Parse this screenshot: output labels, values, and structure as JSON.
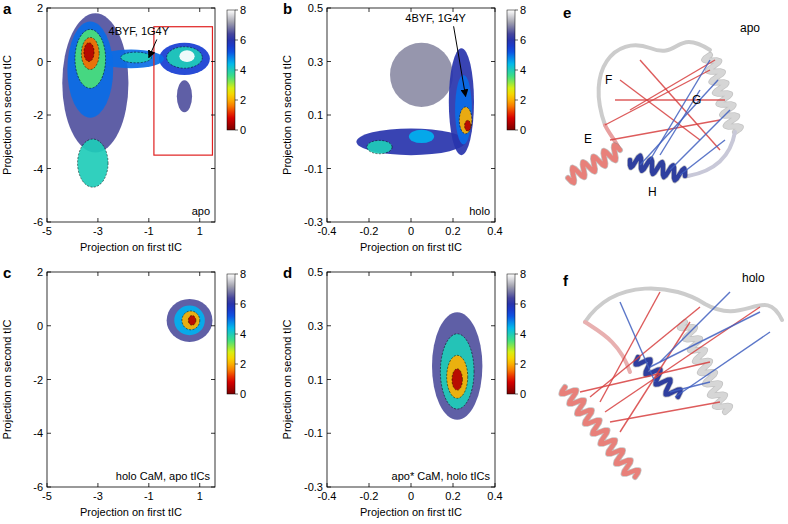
{
  "chart_data": [
    {
      "type": "density",
      "panel": "a",
      "x_label": "Projection on first tIC",
      "y_label": "Projection on second tIC",
      "label": "apo",
      "xlim": [
        -5,
        1.6
      ],
      "ylim": [
        -6,
        2
      ],
      "xticks": [
        -5,
        -3,
        -1,
        1
      ],
      "yticks": [
        -6,
        -4,
        -2,
        0,
        2
      ],
      "colorbar": {
        "range": [
          0,
          8
        ],
        "ticks": [
          0,
          2,
          4,
          6,
          8
        ]
      },
      "regions": [
        {
          "x": -3.1,
          "y": -0.8,
          "rx": 1.3,
          "ry": 2.6,
          "value": 6.5
        },
        {
          "x": 0.4,
          "y": -1.3,
          "rx": 0.3,
          "ry": 0.6,
          "value": 6.5
        },
        {
          "x": 0.4,
          "y": 0.1,
          "rx": 1.0,
          "ry": 0.6,
          "value": 5.5
        },
        {
          "x": -1.7,
          "y": 0.1,
          "rx": 1.3,
          "ry": 0.35,
          "value": 5
        },
        {
          "x": -3.3,
          "y": -0.3,
          "rx": 0.9,
          "ry": 1.8,
          "value": 5
        },
        {
          "x": -3.2,
          "y": -3.8,
          "rx": 0.6,
          "ry": 0.9,
          "value": 4
        },
        {
          "x": -1.5,
          "y": 0.15,
          "rx": 0.6,
          "ry": 0.2,
          "value": 4
        },
        {
          "x": 0.4,
          "y": 0.15,
          "rx": 0.7,
          "ry": 0.4,
          "value": 4
        },
        {
          "x": -3.3,
          "y": 0.1,
          "rx": 0.6,
          "ry": 1.1,
          "value": 3.5
        },
        {
          "x": -3.3,
          "y": 0.3,
          "rx": 0.35,
          "ry": 0.6,
          "value": 1.5
        },
        {
          "x": -3.35,
          "y": 0.35,
          "rx": 0.2,
          "ry": 0.35,
          "value": 0.5
        },
        {
          "x": 0.5,
          "y": 0.2,
          "rx": 0.3,
          "ry": 0.22,
          "value": 8
        }
      ],
      "annotations": [
        {
          "text": "4BYF, 1G4Y",
          "x": -1,
          "y": 0.15
        }
      ],
      "highlight_box": {
        "x": [
          -0.8,
          1.5
        ],
        "y": [
          -3.5,
          1.3
        ]
      }
    },
    {
      "type": "density",
      "panel": "b",
      "x_label": "Projection on first tIC",
      "y_label": "Projection on second tIC",
      "label": "holo",
      "xlim": [
        -0.4,
        0.4
      ],
      "ylim": [
        -0.3,
        0.5
      ],
      "xticks": [
        -0.4,
        -0.2,
        0,
        0.2,
        0.4
      ],
      "yticks": [
        -0.3,
        -0.1,
        0.1,
        0.3,
        0.5
      ],
      "colorbar": {
        "range": [
          0,
          8
        ],
        "ticks": [
          0,
          2,
          4,
          6,
          8
        ]
      },
      "regions": [
        {
          "x": 0.05,
          "y": 0.25,
          "rx": 0.15,
          "ry": 0.12,
          "value": 7
        },
        {
          "x": 0.0,
          "y": 0.0,
          "rx": 0.26,
          "ry": 0.05,
          "value": 6
        },
        {
          "x": 0.24,
          "y": 0.15,
          "rx": 0.06,
          "ry": 0.2,
          "value": 6
        },
        {
          "x": 0.25,
          "y": 0.12,
          "rx": 0.04,
          "ry": 0.13,
          "value": 5
        },
        {
          "x": 0.05,
          "y": 0.02,
          "rx": 0.06,
          "ry": 0.025,
          "value": 4.5
        },
        {
          "x": -0.15,
          "y": -0.02,
          "rx": 0.06,
          "ry": 0.025,
          "value": 4
        },
        {
          "x": 0.26,
          "y": 0.08,
          "rx": 0.03,
          "ry": 0.05,
          "value": 2
        },
        {
          "x": 0.27,
          "y": 0.06,
          "rx": 0.015,
          "ry": 0.02,
          "value": 0.5
        }
      ],
      "annotations": [
        {
          "text": "4BYF, 1G4Y",
          "x": 0.26,
          "y": 0.17
        }
      ]
    },
    {
      "type": "density",
      "panel": "c",
      "x_label": "Projection on first tIC",
      "y_label": "Projection on second tIC",
      "label": "holo CaM, apo tICs",
      "xlim": [
        -5,
        1.6
      ],
      "ylim": [
        -6,
        2
      ],
      "xticks": [
        -5,
        -3,
        -1,
        1
      ],
      "yticks": [
        -6,
        -4,
        -2,
        0,
        2
      ],
      "colorbar": {
        "range": [
          0,
          8
        ],
        "ticks": [
          0,
          2,
          4,
          6,
          8
        ]
      },
      "regions": [
        {
          "x": 0.6,
          "y": 0.2,
          "rx": 0.9,
          "ry": 0.8,
          "value": 6.5
        },
        {
          "x": 0.6,
          "y": 0.2,
          "rx": 0.6,
          "ry": 0.55,
          "value": 4.5
        },
        {
          "x": 0.65,
          "y": 0.2,
          "rx": 0.35,
          "ry": 0.35,
          "value": 2
        },
        {
          "x": 0.7,
          "y": 0.2,
          "rx": 0.15,
          "ry": 0.18,
          "value": 0.5
        }
      ]
    },
    {
      "type": "density",
      "panel": "d",
      "x_label": "Projection on first tIC",
      "y_label": "Projection on second tIC",
      "label": "apo* CaM, holo tICs",
      "xlim": [
        -0.4,
        0.4
      ],
      "ylim": [
        -0.3,
        0.5
      ],
      "xticks": [
        -0.4,
        -0.2,
        0,
        0.2,
        0.4
      ],
      "yticks": [
        -0.3,
        -0.1,
        0.1,
        0.3,
        0.5
      ],
      "colorbar": {
        "range": [
          0,
          8
        ],
        "ticks": [
          0,
          2,
          4,
          6,
          8
        ]
      },
      "regions": [
        {
          "x": 0.22,
          "y": 0.15,
          "rx": 0.12,
          "ry": 0.2,
          "value": 6.5
        },
        {
          "x": 0.22,
          "y": 0.13,
          "rx": 0.08,
          "ry": 0.14,
          "value": 4
        },
        {
          "x": 0.22,
          "y": 0.11,
          "rx": 0.05,
          "ry": 0.08,
          "value": 2
        },
        {
          "x": 0.22,
          "y": 0.1,
          "rx": 0.025,
          "ry": 0.04,
          "value": 0.5
        }
      ]
    }
  ],
  "structures": [
    {
      "panel": "e",
      "label": "apo",
      "helices": [
        "E",
        "F",
        "G",
        "H"
      ]
    },
    {
      "panel": "f",
      "label": "holo"
    }
  ]
}
